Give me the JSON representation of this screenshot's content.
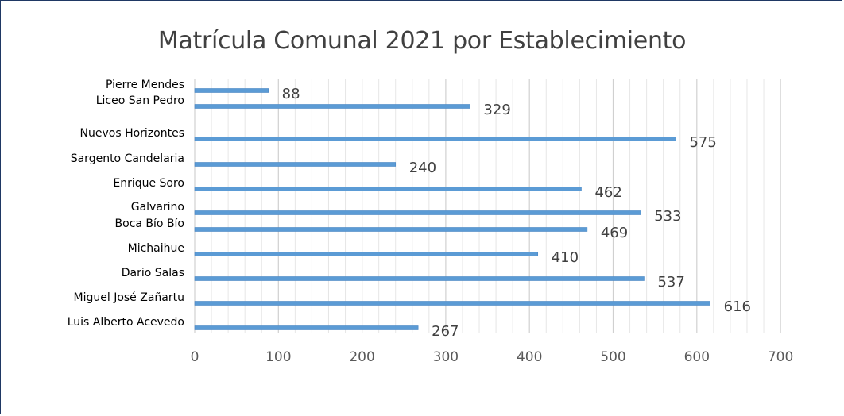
{
  "chart_data": {
    "type": "bar",
    "orientation": "horizontal",
    "title": "Matrícula Comunal 2021 por Establecimiento",
    "xlabel": "",
    "ylabel": "",
    "xlim": [
      0,
      700
    ],
    "ticks": [
      "0",
      "100",
      "200",
      "300",
      "400",
      "500",
      "600",
      "700"
    ],
    "grid": true,
    "categories": [
      "Pierre Mendes",
      "Liceo San Pedro",
      "Nuevos Horizontes",
      "Sargento Candelaria",
      "Enrique Soro",
      "Galvarino",
      "Boca Bío Bío",
      "Michaihue",
      "Dario Salas",
      "Miguel José Zañartu",
      "Luis Alberto Acevedo"
    ],
    "values": [
      88,
      329,
      575,
      240,
      462,
      533,
      469,
      410,
      537,
      616,
      267
    ],
    "bar_color": "#5b9bd5"
  }
}
